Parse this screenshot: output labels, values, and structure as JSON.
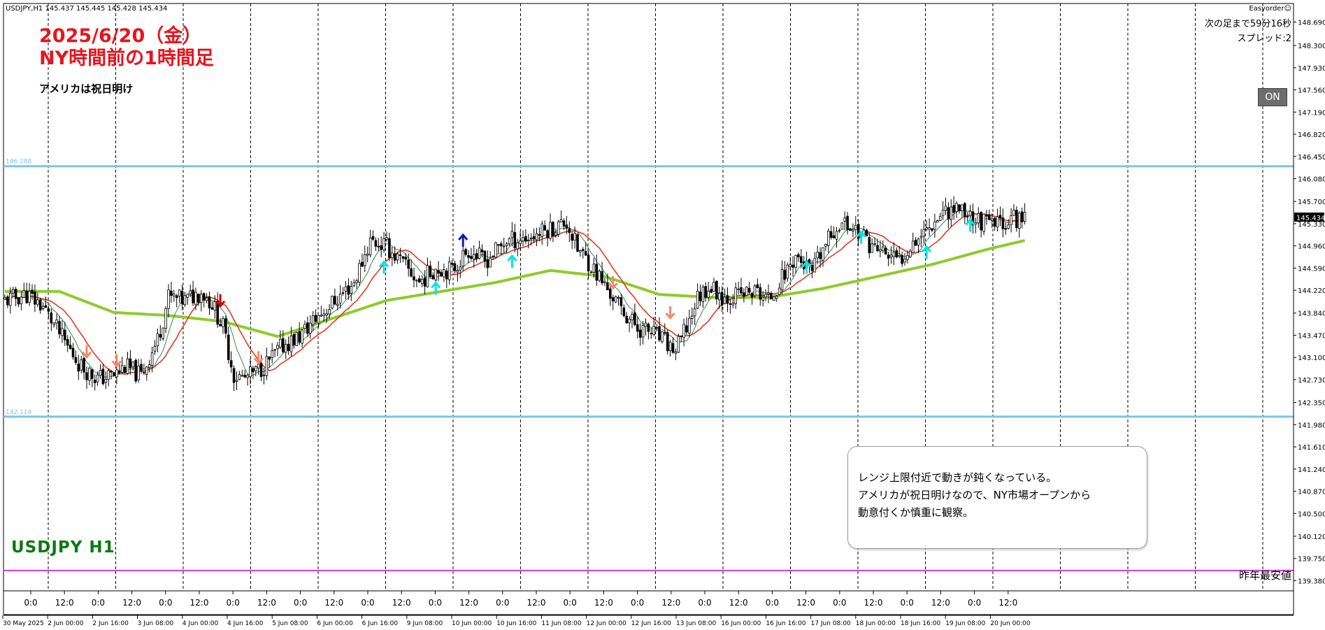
{
  "header": {
    "info": "USDJPY,H1  145.437 145.445 145.428 145.434",
    "easyorder": "Easyorder☺",
    "remain": "次の足まで59分16秒",
    "spread": "スプレッド:2",
    "on_button": "ON"
  },
  "annotations": {
    "date": "2025/6/20（金）",
    "subtitle": "NY時間前の1時間足",
    "holiday": "アメリカは祝日明け",
    "symbol": "USDJPY H1",
    "comment": [
      "レンジ上限付近で動きが鈍くなっている。",
      "アメリカが祝日明けなので、NY市場オープンから",
      "動意付くか慎重に観察。"
    ],
    "low_label": "昨年最安値"
  },
  "colors": {
    "background": "#ffffff",
    "candle": "#000000",
    "grid": "#000000",
    "range_line": "#7ec3e6",
    "yearly_low_line": "#d63ad6",
    "fast_ma": "#2e8b57",
    "mid_ma": "#e8371f",
    "long_ma": "#8ccc2a",
    "buy_arrow": "#00e5e5",
    "sell_arrow": "#f08a6a",
    "strong_sell": "#cc0000",
    "strong_buy": "#1a1aa0",
    "title": "#e8141e",
    "symbol_label": "#0a7a12"
  },
  "chart_data": {
    "type": "candlestick",
    "symbol": "USDJPY",
    "timeframe": "H1",
    "ylim": [
      139.21,
      149.0
    ],
    "y_ticks": [
      "148.690",
      "148.300",
      "147.930",
      "147.560",
      "147.190",
      "146.820",
      "146.450",
      "146.080",
      "145.700",
      "145.330",
      "144.960",
      "144.590",
      "144.220",
      "143.840",
      "143.470",
      "143.100",
      "142.730",
      "142.350",
      "141.980",
      "141.610",
      "141.240",
      "140.870",
      "140.500",
      "140.120",
      "139.750",
      "139.380"
    ],
    "current_price": "145.434",
    "x_labels_top": [
      "0:0",
      "12:0",
      "0:0",
      "12:0",
      "0:0",
      "12:0",
      "0:0",
      "12:0",
      "0:0",
      "12:0",
      "0:0",
      "12:0",
      "0:0",
      "12:0",
      "0:0",
      "12:0",
      "0:0",
      "12:0",
      "0:0",
      "12:0",
      "0:0",
      "12:0",
      "0:0",
      "12:0",
      "0:0",
      "12:0",
      "0:0",
      "12:0",
      "0:0",
      "12:0"
    ],
    "x_labels_bottom": [
      "30 May 2025",
      "2 Jun 00:00",
      "2 Jun 16:00",
      "3 Jun 08:00",
      "4 Jun 00:00",
      "4 Jun 16:00",
      "5 Jun 08:00",
      "6 Jun 00:00",
      "6 Jun 16:00",
      "9 Jun 08:00",
      "10 Jun 00:00",
      "10 Jun 16:00",
      "11 Jun 08:00",
      "12 Jun 00:00",
      "12 Jun 16:00",
      "13 Jun 08:00",
      "16 Jun 00:00",
      "16 Jun 16:00",
      "17 Jun 08:00",
      "18 Jun 00:00",
      "18 Jun 16:00",
      "19 Jun 08:00",
      "20 Jun 00:00"
    ],
    "levels": [
      {
        "label": "146.288",
        "value": 146.288
      },
      {
        "label": "142.114",
        "value": 142.114
      },
      {
        "label": "",
        "value": 139.55
      }
    ],
    "close_path": [
      [
        0,
        144.05
      ],
      [
        8,
        144.15
      ],
      [
        14,
        143.95
      ],
      [
        22,
        143.35
      ],
      [
        28,
        142.95
      ],
      [
        34,
        142.75
      ],
      [
        40,
        142.8
      ],
      [
        44,
        142.95
      ],
      [
        50,
        142.8
      ],
      [
        56,
        143.4
      ],
      [
        60,
        144.1
      ],
      [
        66,
        144.05
      ],
      [
        72,
        144.2
      ],
      [
        76,
        144.0
      ],
      [
        80,
        143.6
      ],
      [
        84,
        142.8
      ],
      [
        88,
        142.75
      ],
      [
        92,
        142.85
      ],
      [
        96,
        143.0
      ],
      [
        102,
        143.3
      ],
      [
        108,
        143.45
      ],
      [
        114,
        143.75
      ],
      [
        120,
        144.0
      ],
      [
        128,
        144.35
      ],
      [
        134,
        145.05
      ],
      [
        140,
        144.95
      ],
      [
        146,
        144.65
      ],
      [
        152,
        144.35
      ],
      [
        158,
        144.6
      ],
      [
        164,
        144.55
      ],
      [
        170,
        144.9
      ],
      [
        176,
        144.7
      ],
      [
        184,
        145.05
      ],
      [
        192,
        145.1
      ],
      [
        200,
        145.25
      ],
      [
        206,
        145.35
      ],
      [
        210,
        144.9
      ],
      [
        214,
        144.7
      ],
      [
        220,
        144.3
      ],
      [
        226,
        143.9
      ],
      [
        232,
        143.6
      ],
      [
        238,
        143.5
      ],
      [
        242,
        143.35
      ],
      [
        246,
        143.2
      ],
      [
        250,
        143.6
      ],
      [
        254,
        144.1
      ],
      [
        258,
        144.3
      ],
      [
        264,
        144.1
      ],
      [
        270,
        144.15
      ],
      [
        276,
        144.2
      ],
      [
        280,
        144.05
      ],
      [
        284,
        144.35
      ],
      [
        290,
        144.8
      ],
      [
        296,
        144.5
      ],
      [
        300,
        144.9
      ],
      [
        306,
        145.35
      ],
      [
        312,
        145.25
      ],
      [
        318,
        144.95
      ],
      [
        324,
        144.8
      ],
      [
        328,
        144.7
      ],
      [
        332,
        145.0
      ],
      [
        338,
        145.25
      ],
      [
        344,
        145.55
      ],
      [
        350,
        145.6
      ],
      [
        356,
        145.4
      ],
      [
        362,
        145.3
      ],
      [
        368,
        145.4
      ],
      [
        374,
        145.434
      ]
    ],
    "ma_long": [
      [
        0,
        144.2
      ],
      [
        20,
        144.2
      ],
      [
        40,
        143.85
      ],
      [
        60,
        143.8
      ],
      [
        80,
        143.7
      ],
      [
        100,
        143.45
      ],
      [
        120,
        143.75
      ],
      [
        140,
        144.05
      ],
      [
        160,
        144.2
      ],
      [
        180,
        144.35
      ],
      [
        200,
        144.55
      ],
      [
        220,
        144.45
      ],
      [
        240,
        144.15
      ],
      [
        260,
        144.1
      ],
      [
        280,
        144.1
      ],
      [
        300,
        144.25
      ],
      [
        320,
        144.45
      ],
      [
        340,
        144.65
      ],
      [
        360,
        144.9
      ],
      [
        374,
        145.05
      ]
    ],
    "signals": [
      {
        "bar": 30,
        "price": 143.2,
        "type": "sell"
      },
      {
        "bar": 41,
        "price": 143.05,
        "type": "sell"
      },
      {
        "bar": 79,
        "price": 144.05,
        "type": "strong-sell"
      },
      {
        "bar": 93,
        "price": 143.1,
        "type": "sell"
      },
      {
        "bar": 139,
        "price": 144.6,
        "type": "buy"
      },
      {
        "bar": 158,
        "price": 144.25,
        "type": "buy"
      },
      {
        "bar": 168,
        "price": 145.05,
        "type": "strong-buy"
      },
      {
        "bar": 186,
        "price": 144.7,
        "type": "buy"
      },
      {
        "bar": 223,
        "price": 144.35,
        "type": "sell"
      },
      {
        "bar": 244,
        "price": 143.85,
        "type": "sell"
      },
      {
        "bar": 294,
        "price": 144.6,
        "type": "buy"
      },
      {
        "bar": 314,
        "price": 145.1,
        "type": "buy"
      },
      {
        "bar": 338,
        "price": 144.85,
        "type": "buy"
      },
      {
        "bar": 354,
        "price": 145.3,
        "type": "buy"
      }
    ]
  }
}
